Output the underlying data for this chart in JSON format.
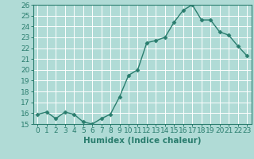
{
  "x": [
    0,
    1,
    2,
    3,
    4,
    5,
    6,
    7,
    8,
    9,
    10,
    11,
    12,
    13,
    14,
    15,
    16,
    17,
    18,
    19,
    20,
    21,
    22,
    23
  ],
  "y": [
    15.9,
    16.1,
    15.5,
    16.1,
    15.9,
    15.2,
    15.0,
    15.5,
    15.9,
    17.5,
    19.5,
    20.0,
    22.5,
    22.7,
    23.0,
    24.4,
    25.5,
    26.0,
    24.6,
    24.6,
    23.5,
    23.2,
    22.2,
    21.3
  ],
  "line_color": "#2a7d6e",
  "marker": "D",
  "marker_size": 2.5,
  "bg_color": "#b0dbd6",
  "grid_color": "#ffffff",
  "xlabel": "Humidex (Indice chaleur)",
  "ylim": [
    15,
    26
  ],
  "xlim": [
    -0.5,
    23.5
  ],
  "yticks": [
    15,
    16,
    17,
    18,
    19,
    20,
    21,
    22,
    23,
    24,
    25,
    26
  ],
  "xticks": [
    0,
    1,
    2,
    3,
    4,
    5,
    6,
    7,
    8,
    9,
    10,
    11,
    12,
    13,
    14,
    15,
    16,
    17,
    18,
    19,
    20,
    21,
    22,
    23
  ],
  "tick_fontsize": 6.5,
  "xlabel_fontsize": 7.5,
  "line_width": 1.0
}
